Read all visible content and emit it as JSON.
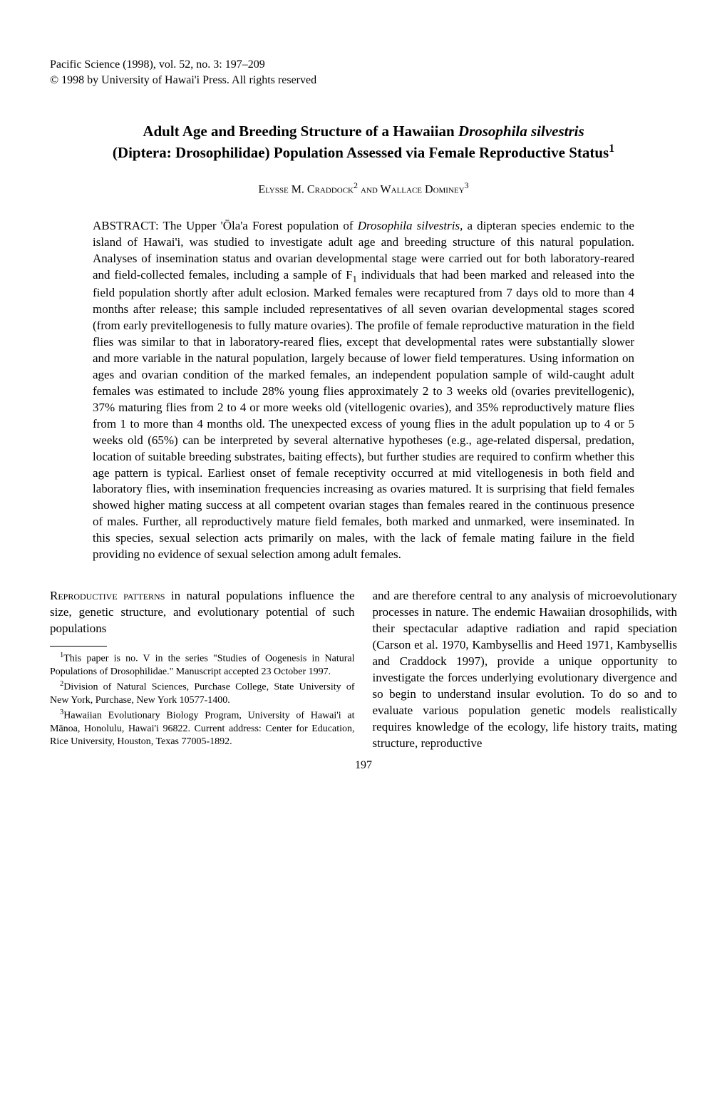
{
  "header": {
    "journal_line": "Pacific Science (1998), vol. 52, no. 3: 197–209",
    "copyright_line": "© 1998 by University of Hawai'i Press. All rights reserved"
  },
  "title": {
    "line1": "Adult Age and Breeding Structure of a Hawaiian ",
    "line1_italic": "Drosophila silvestris",
    "line2": "(Diptera: Drosophilidae) Population Assessed via Female Reproductive Status",
    "sup": "1"
  },
  "authors": {
    "name1": "Elysse M. Craddock",
    "sup1": "2",
    "and": " and ",
    "name2": "Wallace Dominey",
    "sup2": "3"
  },
  "abstract": {
    "label": "ABSTRACT: ",
    "text_part1": "The Upper 'Ōla'a Forest population of ",
    "italic1": "Drosophila silvestris,",
    "text_part2": " a dipteran species endemic to the island of Hawai'i, was studied to investigate adult age and breeding structure of this natural population. Analyses of insemination status and ovarian developmental stage were carried out for both laboratory-reared and field-collected females, including a sample of F",
    "sub1": "1",
    "text_part3": " individuals that had been marked and released into the field population shortly after adult eclosion. Marked females were recaptured from 7 days old to more than 4 months after release; this sample included representatives of all seven ovarian developmental stages scored (from early previtellogenesis to fully mature ovaries). The profile of female reproductive maturation in the field flies was similar to that in laboratory-reared flies, except that developmental rates were substantially slower and more variable in the natural population, largely because of lower field temperatures. Using information on ages and ovarian condition of the marked females, an independent population sample of wild-caught adult females was estimated to include 28% young flies approximately 2 to 3 weeks old (ovaries previtellogenic), 37% maturing flies from 2 to 4 or more weeks old (vitellogenic ovaries), and 35% reproductively mature flies from 1 to more than 4 months old. The unexpected excess of young flies in the adult population up to 4 or 5 weeks old (65%) can be interpreted by several alternative hypotheses (e.g., age-related dispersal, predation, location of suitable breeding substrates, baiting effects), but further studies are required to confirm whether this age pattern is typical. Earliest onset of female receptivity occurred at mid vitellogenesis in both field and laboratory flies, with insemination frequencies increasing as ovaries matured. It is surprising that field females showed higher mating success at all competent ovarian stages than females reared in the continuous presence of males. Further, all reproductively mature field females, both marked and unmarked, were inseminated. In this species, sexual selection acts primarily on males, with the lack of female mating failure in the field providing no evidence of sexual selection among adult females."
  },
  "body": {
    "left_col": {
      "lead_caps": "Reproductive patterns",
      "para1_rest": " in natural populations influence the size, genetic structure, and evolutionary potential of such populations"
    },
    "right_col": {
      "para1": "and are therefore central to any analysis of microevolutionary processes in nature. The endemic Hawaiian drosophilids, with their spectacular adaptive radiation and rapid speciation (Carson et al. 1970, Kambysellis and Heed 1971, Kambysellis and Craddock 1997), provide a unique opportunity to investigate the forces underlying evolutionary divergence and so begin to understand insular evolution. To do so and to evaluate various population genetic models realistically requires knowledge of the ecology, life history traits, mating structure, reproductive"
    }
  },
  "footnotes": {
    "fn1_sup": "1",
    "fn1_text": "This paper is no. V in the series \"Studies of Oogenesis in Natural Populations of Drosophilidae.\" Manuscript accepted 23 October 1997.",
    "fn2_sup": "2",
    "fn2_text": "Division of Natural Sciences, Purchase College, State University of New York, Purchase, New York 10577-1400.",
    "fn3_sup": "3",
    "fn3_text": "Hawaiian Evolutionary Biology Program, University of Hawai'i at Mānoa, Honolulu, Hawai'i 96822. Current address: Center for Education, Rice University, Houston, Texas 77005-1892."
  },
  "page_number": "197"
}
